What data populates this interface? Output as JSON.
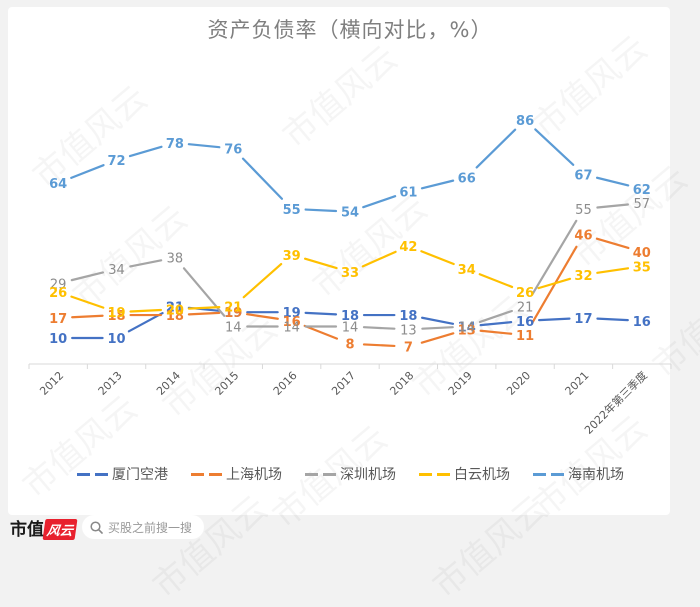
{
  "title": "资产负债率（横向对比，%）",
  "footer": {
    "brand_text": "市值",
    "brand_badge": "风云",
    "search_placeholder": "买股之前搜一搜",
    "search_icon": "search-icon"
  },
  "watermark": "市值风云",
  "colors": {
    "厦门空港": "#4472c4",
    "上海机场": "#ed7d31",
    "深圳机场": "#a5a5a5",
    "白云机场": "#ffc000",
    "海南机场": "#5b9bd5"
  },
  "legend": [
    {
      "label": "厦门空港",
      "color": "#4472c4"
    },
    {
      "label": "上海机场",
      "color": "#ed7d31"
    },
    {
      "label": "深圳机场",
      "color": "#a5a5a5"
    },
    {
      "label": "白云机场",
      "color": "#ffc000"
    },
    {
      "label": "海南机场",
      "color": "#5b9bd5"
    }
  ],
  "chart_data": {
    "type": "line",
    "title": "资产负债率（横向对比，%）",
    "xlabel": "",
    "ylabel": "%",
    "categories": [
      "2012",
      "2013",
      "2014",
      "2015",
      "2016",
      "2017",
      "2018",
      "2019",
      "2020",
      "2021",
      "2022年第三季度"
    ],
    "series": [
      {
        "name": "厦门空港",
        "color": "#4472c4",
        "values": [
          10,
          10,
          21,
          19,
          19,
          18,
          18,
          14,
          16,
          17,
          16
        ]
      },
      {
        "name": "上海机场",
        "color": "#ed7d31",
        "values": [
          17,
          18,
          18,
          19,
          16,
          8,
          7,
          13,
          11,
          46,
          40
        ]
      },
      {
        "name": "深圳机场",
        "color": "#a5a5a5",
        "values": [
          29,
          34,
          38,
          14,
          14,
          14,
          13,
          14,
          21,
          55,
          57
        ]
      },
      {
        "name": "白云机场",
        "color": "#ffc000",
        "values": [
          26,
          19,
          20,
          21,
          39,
          33,
          42,
          34,
          26,
          32,
          35
        ]
      },
      {
        "name": "海南机场",
        "color": "#5b9bd5",
        "values": [
          64,
          72,
          78,
          76,
          55,
          54,
          61,
          66,
          86,
          67,
          62
        ]
      }
    ],
    "grid": false,
    "y_axis_visible": false,
    "data_labels": true,
    "legend_position": "bottom",
    "line_style": "solid with dashed legend markers",
    "x_tick_rotation": -45
  }
}
